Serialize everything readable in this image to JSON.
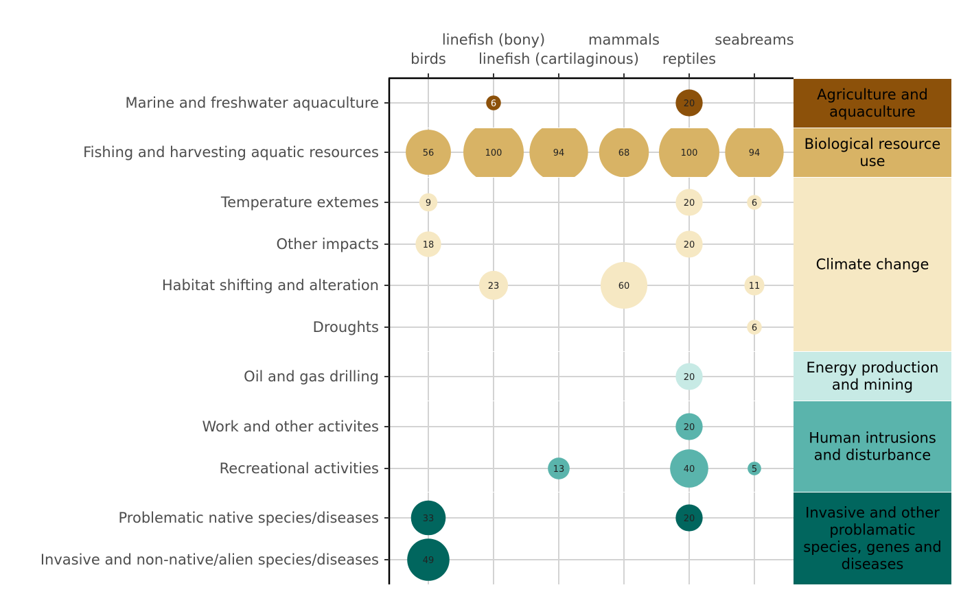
{
  "chart_data": {
    "type": "bubble-matrix",
    "columns": [
      "birds",
      "linefish (bony)",
      "linefish (cartilaginous)",
      "mammals",
      "reptiles",
      "seabreams"
    ],
    "rows": [
      {
        "label": "Marine and freshwater aquaculture",
        "group": 0,
        "values": [
          null,
          6,
          null,
          null,
          20,
          null
        ]
      },
      {
        "label": "Fishing and harvesting aquatic resources",
        "group": 1,
        "values": [
          56,
          100,
          94,
          68,
          100,
          94
        ]
      },
      {
        "label": "Temperature extemes",
        "group": 2,
        "values": [
          9,
          null,
          null,
          null,
          20,
          6
        ]
      },
      {
        "label": "Other impacts",
        "group": 2,
        "values": [
          18,
          null,
          null,
          null,
          20,
          null
        ]
      },
      {
        "label": "Habitat shifting and alteration",
        "group": 2,
        "values": [
          null,
          23,
          null,
          60,
          null,
          11
        ]
      },
      {
        "label": "Droughts",
        "group": 2,
        "values": [
          null,
          null,
          null,
          null,
          null,
          6
        ]
      },
      {
        "label": "Oil and gas drilling",
        "group": 3,
        "values": [
          null,
          null,
          null,
          null,
          20,
          null
        ]
      },
      {
        "label": "Work and other activites",
        "group": 4,
        "values": [
          null,
          null,
          null,
          null,
          20,
          null
        ]
      },
      {
        "label": "Recreational activities",
        "group": 4,
        "values": [
          null,
          null,
          13,
          null,
          40,
          5
        ]
      },
      {
        "label": "Problematic native species/diseases",
        "group": 5,
        "values": [
          33,
          null,
          null,
          null,
          20,
          null
        ]
      },
      {
        "label": "Invasive and non-native/alien species/diseases",
        "group": 5,
        "values": [
          49,
          null,
          null,
          null,
          null,
          null
        ]
      }
    ],
    "groups": [
      {
        "lines": [
          "Agriculture and",
          "aquaculture"
        ],
        "color": "#8c510a",
        "text_color": "#000000"
      },
      {
        "lines": [
          "Biological resource",
          "use"
        ],
        "color": "#d8b365",
        "text_color": "#000000"
      },
      {
        "lines": [
          "Climate change"
        ],
        "color": "#f6e8c3",
        "text_color": "#000000"
      },
      {
        "lines": [
          "Energy production",
          "and mining"
        ],
        "color": "#c7eae5",
        "text_color": "#000000"
      },
      {
        "lines": [
          "Human intrusions",
          "and disturbance"
        ],
        "color": "#5ab4ac",
        "text_color": "#000000"
      },
      {
        "lines": [
          "Invasive and other",
          "problamatic",
          "species, genes and",
          "diseases"
        ],
        "color": "#01665e",
        "text_color": "#000000"
      }
    ],
    "size_max_value": 100
  }
}
